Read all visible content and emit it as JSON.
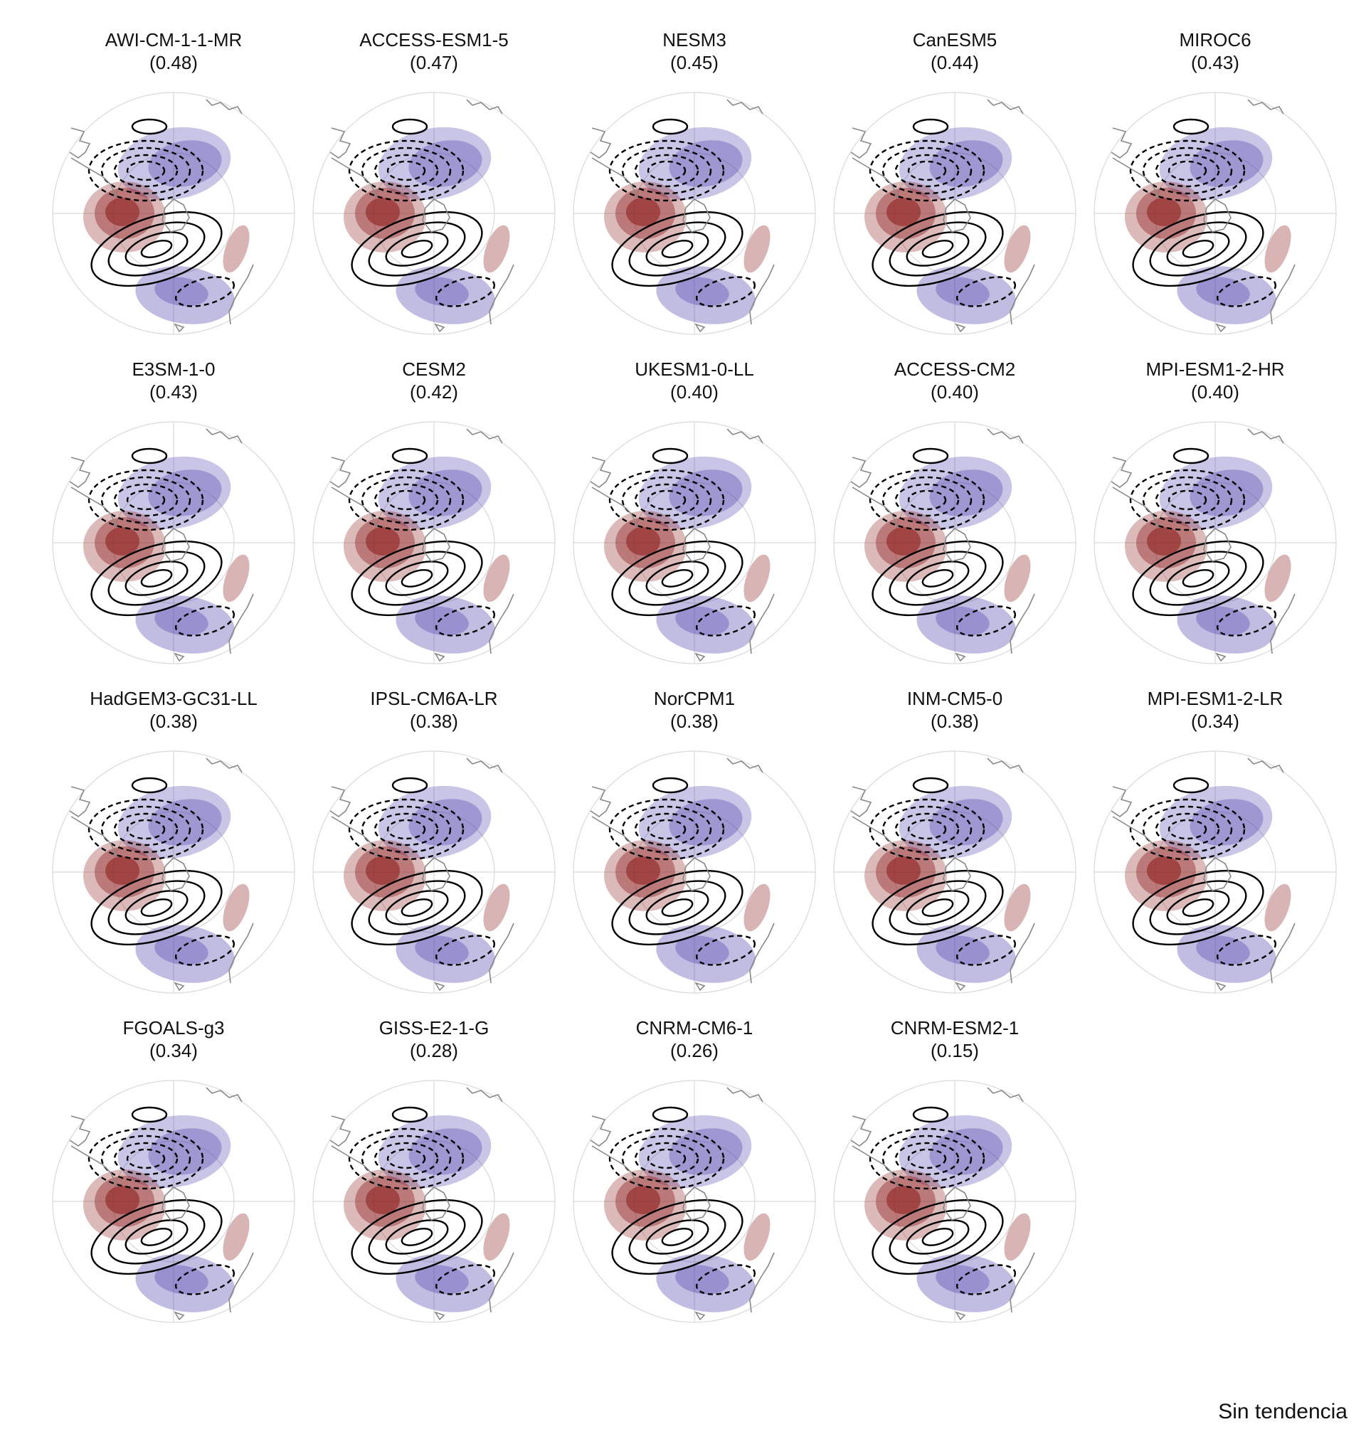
{
  "footer_label": "Sin tendencia",
  "colors": {
    "positive": "#8b1a1a",
    "negative": "#3b2fa6",
    "coast": "#888888",
    "grid": "#d9d9d9",
    "contour": "#000000"
  },
  "panels": [
    {
      "model": "AWI-CM-1-1-MR",
      "score": "(0.48)"
    },
    {
      "model": "ACCESS-ESM1-5",
      "score": "(0.47)"
    },
    {
      "model": "NESM3",
      "score": "(0.45)"
    },
    {
      "model": "CanESM5",
      "score": "(0.44)"
    },
    {
      "model": "MIROC6",
      "score": "(0.43)"
    },
    {
      "model": "E3SM-1-0",
      "score": "(0.43)"
    },
    {
      "model": "CESM2",
      "score": "(0.42)"
    },
    {
      "model": "UKESM1-0-LL",
      "score": "(0.40)"
    },
    {
      "model": "ACCESS-CM2",
      "score": "(0.40)"
    },
    {
      "model": "MPI-ESM1-2-HR",
      "score": "(0.40)"
    },
    {
      "model": "HadGEM3-GC31-LL",
      "score": "(0.38)"
    },
    {
      "model": "IPSL-CM6A-LR",
      "score": "(0.38)"
    },
    {
      "model": "NorCPM1",
      "score": "(0.38)"
    },
    {
      "model": "INM-CM5-0",
      "score": "(0.38)"
    },
    {
      "model": "MPI-ESM1-2-LR",
      "score": "(0.34)"
    },
    {
      "model": "FGOALS-g3",
      "score": "(0.34)"
    },
    {
      "model": "GISS-E2-1-G",
      "score": "(0.28)"
    },
    {
      "model": "CNRM-CM6-1",
      "score": "(0.26)"
    },
    {
      "model": "CNRM-ESM2-1",
      "score": "(0.15)"
    }
  ]
}
